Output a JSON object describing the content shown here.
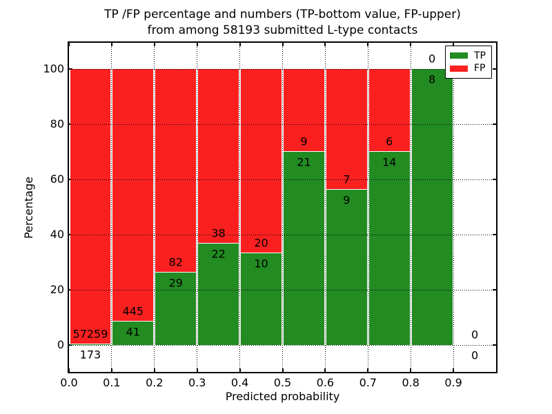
{
  "figure": {
    "title_line1": "TP /FP percentage and numbers (TP-bottom value, FP-upper)",
    "title_line2": "from among 58193 submitted L-type contacts"
  },
  "chart_data": {
    "type": "bar",
    "stacked": true,
    "title": "TP /FP percentage and numbers (TP-bottom value, FP-upper) from among 58193 submitted L-type contacts",
    "xlabel": "Predicted probability",
    "ylabel": "Percentage",
    "xlim": [
      0.0,
      1.0
    ],
    "ylim": [
      -10,
      110
    ],
    "grid": true,
    "gridstyle": "dotted",
    "legend_position": "upper right",
    "colors": {
      "tp": "#228b22",
      "fp": "#fb2020"
    },
    "xtick_values": [
      0.0,
      0.1,
      0.2,
      0.3,
      0.4,
      0.5,
      0.6,
      0.7,
      0.8,
      0.9
    ],
    "xticks": [
      "0.0",
      "0.1",
      "0.2",
      "0.3",
      "0.4",
      "0.5",
      "0.6",
      "0.7",
      "0.8",
      "0.9"
    ],
    "ytick_values": [
      0,
      20,
      40,
      60,
      80,
      100
    ],
    "yticks": [
      "0",
      "20",
      "40",
      "60",
      "80",
      "100"
    ],
    "total_contacts": 58193,
    "series": [
      {
        "name": "TP",
        "counts": [
          173,
          41,
          29,
          22,
          10,
          21,
          9,
          14,
          8,
          0
        ]
      },
      {
        "name": "FP",
        "counts": [
          57259,
          445,
          82,
          38,
          20,
          9,
          7,
          6,
          0,
          0
        ]
      }
    ],
    "bins": [
      {
        "x0": 0.0,
        "x1": 0.1,
        "tp": 173,
        "fp": 57259
      },
      {
        "x0": 0.1,
        "x1": 0.2,
        "tp": 41,
        "fp": 445
      },
      {
        "x0": 0.2,
        "x1": 0.3,
        "tp": 29,
        "fp": 82
      },
      {
        "x0": 0.3,
        "x1": 0.4,
        "tp": 22,
        "fp": 38
      },
      {
        "x0": 0.4,
        "x1": 0.5,
        "tp": 10,
        "fp": 20
      },
      {
        "x0": 0.5,
        "x1": 0.6,
        "tp": 21,
        "fp": 9
      },
      {
        "x0": 0.6,
        "x1": 0.7,
        "tp": 9,
        "fp": 7
      },
      {
        "x0": 0.7,
        "x1": 0.8,
        "tp": 14,
        "fp": 6
      },
      {
        "x0": 0.8,
        "x1": 0.9,
        "tp": 8,
        "fp": 0
      },
      {
        "x0": 0.9,
        "x1": 1.0,
        "tp": 0,
        "fp": 0
      }
    ]
  },
  "legend": {
    "items": [
      {
        "label": "TP",
        "color": "#228b22"
      },
      {
        "label": "FP",
        "color": "#fb2020"
      }
    ]
  }
}
